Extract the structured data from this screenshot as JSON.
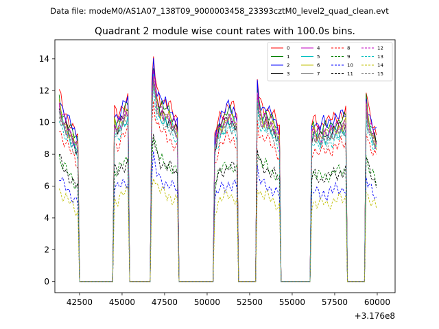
{
  "suptitle": "Data file: modeM0/AS1A07_138T09_9000003458_23393cztM0_level2_quad_clean.evt",
  "chart_data": {
    "type": "line",
    "title": "Quadrant 2 module wise count rates with 100.0s bins.",
    "xlabel": "",
    "ylabel": "",
    "x_offset_label": "+3.176e8",
    "xlim": [
      41050,
      61050
    ],
    "ylim": [
      -0.7,
      15.2
    ],
    "xticks": [
      42500,
      45000,
      47500,
      50000,
      52500,
      55000,
      57500,
      60000
    ],
    "xtick_labels": [
      "42500",
      "45000",
      "47500",
      "50000",
      "52500",
      "55000",
      "57500",
      "60000"
    ],
    "yticks": [
      0,
      2,
      4,
      6,
      8,
      10,
      12,
      14
    ],
    "ytick_labels": [
      "0",
      "2",
      "4",
      "6",
      "8",
      "10",
      "12",
      "14"
    ],
    "legend_position": "top-right",
    "segments": [
      {
        "start": 41300,
        "end": 42500,
        "shape": [
          1.08,
          1.04,
          1.0,
          0.98,
          0.96,
          0.94,
          0.92,
          0.9,
          0.88,
          0.86,
          0.84,
          0.83
        ]
      },
      {
        "start": 44550,
        "end": 45450,
        "shape": [
          0.97,
          0.96,
          0.95,
          0.97,
          0.99,
          1.01,
          1.02,
          1.04,
          1.05
        ]
      },
      {
        "start": 46750,
        "end": 48350,
        "shape": [
          1.1,
          1.28,
          1.18,
          1.1,
          1.08,
          1.04,
          1.05,
          1.02,
          1.03,
          1.0,
          1.01,
          0.99,
          0.97,
          0.96,
          0.95,
          0.93
        ]
      },
      {
        "start": 50450,
        "end": 51850,
        "shape": [
          0.82,
          0.88,
          0.92,
          0.95,
          0.96,
          0.97,
          0.98,
          1.0,
          1.01,
          1.0,
          0.99,
          1.0,
          0.98,
          0.96
        ]
      },
      {
        "start": 52950,
        "end": 54350,
        "shape": [
          1.15,
          1.06,
          1.02,
          1.0,
          0.99,
          1.0,
          0.98,
          0.97,
          0.96,
          0.95,
          0.94,
          0.92,
          0.9,
          0.88
        ]
      },
      {
        "start": 56150,
        "end": 58250,
        "shape": [
          0.9,
          0.93,
          0.92,
          0.9,
          0.91,
          0.89,
          0.9,
          0.92,
          0.91,
          0.9,
          0.92,
          0.93,
          0.92,
          0.94,
          0.95,
          0.94,
          0.95,
          0.96,
          0.95,
          0.96,
          0.97
        ]
      },
      {
        "start": 59350,
        "end": 60050,
        "shape": [
          1.08,
          1.0,
          0.96,
          0.93,
          0.9,
          0.88,
          0.85
        ]
      }
    ],
    "series": [
      {
        "name": "0",
        "color": "#ff0000",
        "style": "solid",
        "level": 11.0
      },
      {
        "name": "1",
        "color": "#008000",
        "style": "solid",
        "level": 10.6
      },
      {
        "name": "2",
        "color": "#0000ff",
        "style": "solid",
        "level": 10.9
      },
      {
        "name": "3",
        "color": "#000000",
        "style": "solid",
        "level": 10.1
      },
      {
        "name": "4",
        "color": "#bf00bf",
        "style": "solid",
        "level": 10.3
      },
      {
        "name": "5",
        "color": "#00bfbf",
        "style": "solid",
        "level": 9.9
      },
      {
        "name": "6",
        "color": "#bfbf00",
        "style": "solid",
        "level": 10.2
      },
      {
        "name": "7",
        "color": "#808080",
        "style": "solid",
        "level": 10.0
      },
      {
        "name": "8",
        "color": "#ff0000",
        "style": "dashed",
        "level": 9.0
      },
      {
        "name": "9",
        "color": "#008000",
        "style": "dashed",
        "level": 7.3
      },
      {
        "name": "10",
        "color": "#0000ff",
        "style": "dashed",
        "level": 6.1
      },
      {
        "name": "11",
        "color": "#000000",
        "style": "dashed",
        "level": 7.2
      },
      {
        "name": "12",
        "color": "#bf00bf",
        "style": "dashed",
        "level": 10.1
      },
      {
        "name": "13",
        "color": "#00bfbf",
        "style": "dashed",
        "level": 9.6
      },
      {
        "name": "14",
        "color": "#bfbf00",
        "style": "dashed",
        "level": 5.4
      },
      {
        "name": "15",
        "color": "#808080",
        "style": "dashed",
        "level": 9.7
      }
    ]
  }
}
